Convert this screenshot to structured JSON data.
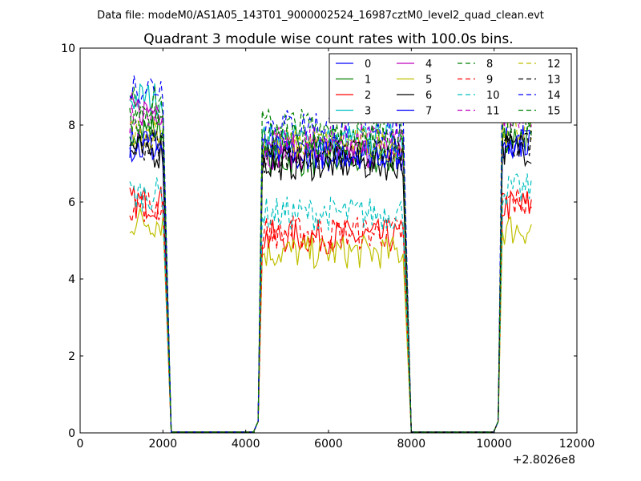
{
  "suptitle": "Data file: modeM0/AS1A05_143T01_9000002524_16987cztM0_level2_quad_clean.evt",
  "chart_data": {
    "type": "line",
    "title": "Quadrant 3 module wise count rates with 100.0s bins.",
    "x_offset_label": "+2.8026e8",
    "xlim": [
      0,
      12000
    ],
    "ylim": [
      0,
      10
    ],
    "xticks": [
      0,
      2000,
      4000,
      6000,
      8000,
      10000,
      12000
    ],
    "yticks": [
      0,
      2,
      4,
      6,
      8,
      10
    ],
    "grid": false,
    "legend_position": "top-right",
    "legend_columns": 4,
    "segments": [
      {
        "x_start": 1200,
        "x_end": 2000,
        "drop_to": 2200
      },
      {
        "x_start": 4400,
        "x_end": 7800,
        "rise_from": 4200,
        "drop_to": 8000
      },
      {
        "x_start": 10200,
        "x_end": 10900,
        "rise_from": 10000
      }
    ],
    "series": [
      {
        "name": "0",
        "color": "#0000ff",
        "dash": false,
        "seg_levels": [
          7.6,
          7.2,
          7.5
        ]
      },
      {
        "name": "1",
        "color": "#008000",
        "dash": false,
        "seg_levels": [
          7.9,
          7.1,
          7.7
        ]
      },
      {
        "name": "2",
        "color": "#ff0000",
        "dash": false,
        "seg_levels": [
          6.0,
          5.1,
          5.9
        ]
      },
      {
        "name": "3",
        "color": "#00bfbf",
        "dash": false,
        "seg_levels": [
          8.7,
          7.6,
          8.5
        ]
      },
      {
        "name": "4",
        "color": "#bf00bf",
        "dash": false,
        "seg_levels": [
          8.4,
          7.3,
          8.2
        ]
      },
      {
        "name": "5",
        "color": "#bfbf00",
        "dash": false,
        "seg_levels": [
          5.5,
          4.7,
          5.3
        ]
      },
      {
        "name": "6",
        "color": "#000000",
        "dash": false,
        "seg_levels": [
          7.3,
          7.0,
          7.4
        ]
      },
      {
        "name": "7",
        "color": "#0000ff",
        "dash": false,
        "seg_levels": [
          7.4,
          7.3,
          7.6
        ]
      },
      {
        "name": "8",
        "color": "#008000",
        "dash": true,
        "seg_levels": [
          8.6,
          8.0,
          8.7
        ]
      },
      {
        "name": "9",
        "color": "#ff0000",
        "dash": true,
        "seg_levels": [
          5.9,
          5.2,
          6.0
        ]
      },
      {
        "name": "10",
        "color": "#00bfbf",
        "dash": true,
        "seg_levels": [
          6.2,
          5.7,
          6.3
        ]
      },
      {
        "name": "11",
        "color": "#bf00bf",
        "dash": true,
        "seg_levels": [
          8.1,
          7.6,
          8.2
        ]
      },
      {
        "name": "12",
        "color": "#bfbf00",
        "dash": true,
        "seg_levels": [
          7.8,
          7.5,
          7.9
        ]
      },
      {
        "name": "13",
        "color": "#000000",
        "dash": true,
        "seg_levels": [
          7.5,
          7.2,
          7.6
        ]
      },
      {
        "name": "14",
        "color": "#0000ff",
        "dash": true,
        "seg_levels": [
          9.0,
          8.0,
          8.9
        ]
      },
      {
        "name": "15",
        "color": "#008000",
        "dash": true,
        "seg_levels": [
          8.2,
          7.6,
          8.0
        ]
      }
    ]
  }
}
